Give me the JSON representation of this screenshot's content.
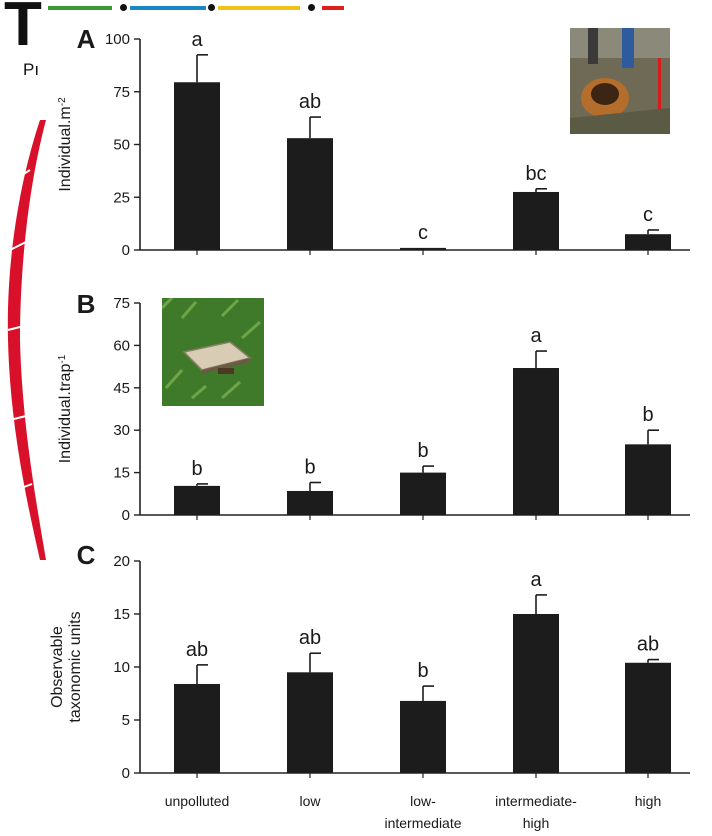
{
  "header": {
    "logo_letter": "T",
    "logo_sub": "Pı",
    "bar_colors": [
      "#3a9a35",
      "#1a86c8",
      "#f2c21b",
      "#e01e1e"
    ]
  },
  "photos": {
    "top_right": "soil-pit-photo",
    "panel_b": "pitfall-trap-photo"
  },
  "chart_data": [
    {
      "type": "bar",
      "panel": "A",
      "categories": [
        "unpolluted",
        "low",
        "low-intermediate",
        "intermediate-high",
        "high"
      ],
      "values": [
        79.5,
        53,
        1,
        27.5,
        7.5
      ],
      "errors": [
        13,
        10,
        0,
        1.5,
        2
      ],
      "letters": [
        "a",
        "ab",
        "c",
        "bc",
        "c"
      ],
      "ylabel": "Individual.m",
      "ylabel_sup": "-2",
      "ylim": [
        0,
        100
      ],
      "yticks": [
        0,
        25,
        50,
        75,
        100
      ]
    },
    {
      "type": "bar",
      "panel": "B",
      "categories": [
        "unpolluted",
        "low",
        "low-intermediate",
        "intermediate-high",
        "high"
      ],
      "values": [
        10.3,
        8.5,
        15,
        52,
        25
      ],
      "errors": [
        0.7,
        3,
        2.3,
        6,
        5
      ],
      "letters": [
        "b",
        "b",
        "b",
        "a",
        "b"
      ],
      "ylabel": "Individual.trap",
      "ylabel_sup": "-1",
      "ylim": [
        0,
        75
      ],
      "yticks": [
        0,
        15,
        30,
        45,
        60,
        75
      ]
    },
    {
      "type": "bar",
      "panel": "C",
      "categories": [
        "unpolluted",
        "low",
        "low-intermediate",
        "intermediate-high",
        "high"
      ],
      "values": [
        8.4,
        9.5,
        6.8,
        15,
        10.4
      ],
      "errors": [
        1.8,
        1.8,
        1.4,
        1.8,
        0.3
      ],
      "letters": [
        "ab",
        "ab",
        "b",
        "a",
        "ab"
      ],
      "ylabel_lines": [
        "Observable",
        "taxonomic units"
      ],
      "ylim": [
        0,
        20
      ],
      "yticks": [
        0,
        5,
        10,
        15,
        20
      ]
    }
  ],
  "x_labels": [
    [
      "unpolluted"
    ],
    [
      "low"
    ],
    [
      "low-",
      "intermediate"
    ],
    [
      "intermediate-",
      "high"
    ],
    [
      "high"
    ]
  ]
}
